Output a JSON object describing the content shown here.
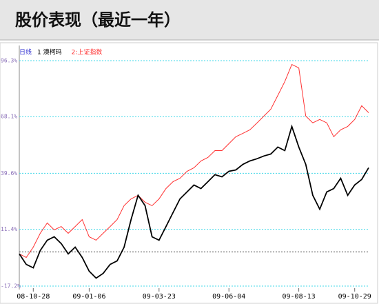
{
  "header": {
    "title": "股价表现（最近一年）"
  },
  "chart_data": {
    "type": "line",
    "legend_prefix": "日线",
    "categories": [
      null,
      null,
      "08-10-28",
      null,
      null,
      null,
      null,
      null,
      null,
      null,
      "09-01-06",
      null,
      null,
      null,
      null,
      null,
      null,
      null,
      null,
      null,
      "09-03-23",
      null,
      null,
      null,
      null,
      null,
      null,
      null,
      null,
      null,
      "09-06-04",
      null,
      null,
      null,
      null,
      null,
      null,
      null,
      null,
      null,
      "09-08-13",
      null,
      null,
      null,
      null,
      null,
      null,
      null,
      "09-10-29",
      null,
      null
    ],
    "series": [
      {
        "name": "1 澳柯玛",
        "color": "#000000",
        "values": [
          -1.0,
          -6.3,
          -8.0,
          0.7,
          5.9,
          7.6,
          4.2,
          -1.0,
          2.4,
          -2.8,
          -9.7,
          -13.2,
          -10.8,
          -6.3,
          -4.5,
          2.4,
          16.3,
          28.5,
          23.3,
          7.6,
          5.9,
          12.8,
          19.8,
          26.7,
          30.2,
          33.7,
          31.9,
          35.4,
          38.9,
          37.8,
          40.6,
          41.3,
          44.1,
          45.8,
          46.9,
          48.3,
          49.3,
          52.8,
          51.0,
          63.2,
          52.8,
          44.1,
          28.5,
          21.5,
          30.2,
          31.9,
          37.1,
          28.5,
          33.7,
          36.5,
          42.4
        ]
      },
      {
        "name": "2:上证指数",
        "color": "#ff3030",
        "values": [
          -1.0,
          -2.8,
          2.4,
          9.4,
          14.6,
          11.1,
          12.8,
          9.4,
          12.8,
          16.3,
          7.6,
          5.9,
          9.4,
          12.8,
          16.3,
          23.3,
          26.7,
          28.5,
          25.0,
          23.3,
          26.7,
          31.9,
          35.4,
          37.1,
          40.6,
          42.4,
          45.8,
          47.6,
          51.0,
          51.0,
          54.5,
          58.0,
          59.7,
          61.5,
          64.9,
          68.4,
          71.9,
          78.8,
          85.8,
          94.4,
          92.7,
          68.4,
          65.0,
          66.7,
          65.0,
          58.0,
          61.5,
          63.2,
          66.7,
          73.6,
          70.1
        ]
      }
    ],
    "ylim": [
      -17.2,
      96.3
    ],
    "yticks": [
      {
        "value": 96.3,
        "label": "96.3%"
      },
      {
        "value": 68.1,
        "label": "68.1%"
      },
      {
        "value": 39.6,
        "label": "39.6%"
      },
      {
        "value": 11.4,
        "label": "11.4%"
      },
      {
        "value": -17.2,
        "label": "-17.2%"
      }
    ],
    "reference_line": 0,
    "grid": true
  }
}
